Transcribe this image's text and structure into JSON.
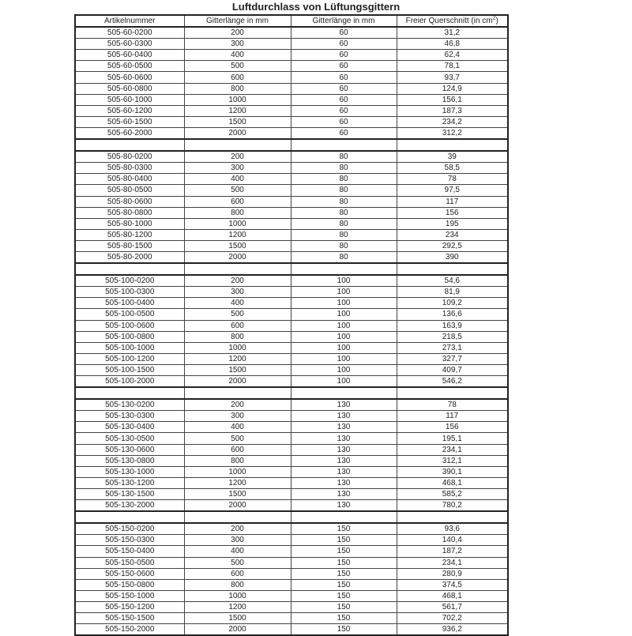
{
  "title": "Luftdurchlass von Lüftungsgittern",
  "headers": [
    "Artikelnummer",
    "Gitterlänge in mm",
    "Gitterlänge in mm",
    "Freier Querschnitt (in cm",
    "2",
    ")"
  ],
  "groups": [
    {
      "rows": [
        [
          "505-60-0200",
          "200",
          "60",
          "31,2"
        ],
        [
          "505-60-0300",
          "300",
          "60",
          "46,8"
        ],
        [
          "505-60-0400",
          "400",
          "60",
          "62,4"
        ],
        [
          "505-60-0500",
          "500",
          "60",
          "78,1"
        ],
        [
          "505-60-0600",
          "600",
          "60",
          "93,7"
        ],
        [
          "505-60-0800",
          "800",
          "60",
          "124,9"
        ],
        [
          "505-60-1000",
          "1000",
          "60",
          "156,1"
        ],
        [
          "505-60-1200",
          "1200",
          "60",
          "187,3"
        ],
        [
          "505-60-1500",
          "1500",
          "60",
          "234,2"
        ],
        [
          "505-60-2000",
          "2000",
          "60",
          "312,2"
        ]
      ]
    },
    {
      "rows": [
        [
          "505-80-0200",
          "200",
          "80",
          "39"
        ],
        [
          "505-80-0300",
          "300",
          "80",
          "58,5"
        ],
        [
          "505-80-0400",
          "400",
          "80",
          "78"
        ],
        [
          "505-80-0500",
          "500",
          "80",
          "97,5"
        ],
        [
          "505-80-0600",
          "600",
          "80",
          "117"
        ],
        [
          "505-80-0800",
          "800",
          "80",
          "156"
        ],
        [
          "505-80-1000",
          "1000",
          "80",
          "195"
        ],
        [
          "505-80-1200",
          "1200",
          "80",
          "234"
        ],
        [
          "505-80-1500",
          "1500",
          "80",
          "292,5"
        ],
        [
          "505-80-2000",
          "2000",
          "80",
          "390"
        ]
      ]
    },
    {
      "rows": [
        [
          "505-100-0200",
          "200",
          "100",
          "54,6"
        ],
        [
          "505-100-0300",
          "300",
          "100",
          "81,9"
        ],
        [
          "505-100-0400",
          "400",
          "100",
          "109,2"
        ],
        [
          "505-100-0500",
          "500",
          "100",
          "136,6"
        ],
        [
          "505-100-0600",
          "600",
          "100",
          "163,9"
        ],
        [
          "505-100-0800",
          "800",
          "100",
          "218,5"
        ],
        [
          "505-100-1000",
          "1000",
          "100",
          "273,1"
        ],
        [
          "505-100-1200",
          "1200",
          "100",
          "327,7"
        ],
        [
          "505-100-1500",
          "1500",
          "100",
          "409,7"
        ],
        [
          "505-100-2000",
          "2000",
          "100",
          "546,2"
        ]
      ]
    },
    {
      "rows": [
        [
          "505-130-0200",
          "200",
          "130",
          "78"
        ],
        [
          "505-130-0300",
          "300",
          "130",
          "117"
        ],
        [
          "505-130-0400",
          "400",
          "130",
          "156"
        ],
        [
          "505-130-0500",
          "500",
          "130",
          "195,1"
        ],
        [
          "505-130-0600",
          "600",
          "130",
          "234,1"
        ],
        [
          "505-130-0800",
          "800",
          "130",
          "312,1"
        ],
        [
          "505-130-1000",
          "1000",
          "130",
          "390,1"
        ],
        [
          "505-130-1200",
          "1200",
          "130",
          "468,1"
        ],
        [
          "505-130-1500",
          "1500",
          "130",
          "585,2"
        ],
        [
          "505-130-2000",
          "2000",
          "130",
          "780,2"
        ]
      ]
    },
    {
      "rows": [
        [
          "505-150-0200",
          "200",
          "150",
          "93,6"
        ],
        [
          "505-150-0300",
          "300",
          "150",
          "140,4"
        ],
        [
          "505-150-0400",
          "400",
          "150",
          "187,2"
        ],
        [
          "505-150-0500",
          "500",
          "150",
          "234,1"
        ],
        [
          "505-150-0600",
          "600",
          "150",
          "280,9"
        ],
        [
          "505-150-0800",
          "800",
          "150",
          "374,5"
        ],
        [
          "505-150-1000",
          "1000",
          "150",
          "468,1"
        ],
        [
          "505-150-1200",
          "1200",
          "150",
          "561,7"
        ],
        [
          "505-150-1500",
          "1500",
          "150",
          "702,2"
        ],
        [
          "505-150-2000",
          "2000",
          "150",
          "936,2"
        ]
      ]
    }
  ]
}
